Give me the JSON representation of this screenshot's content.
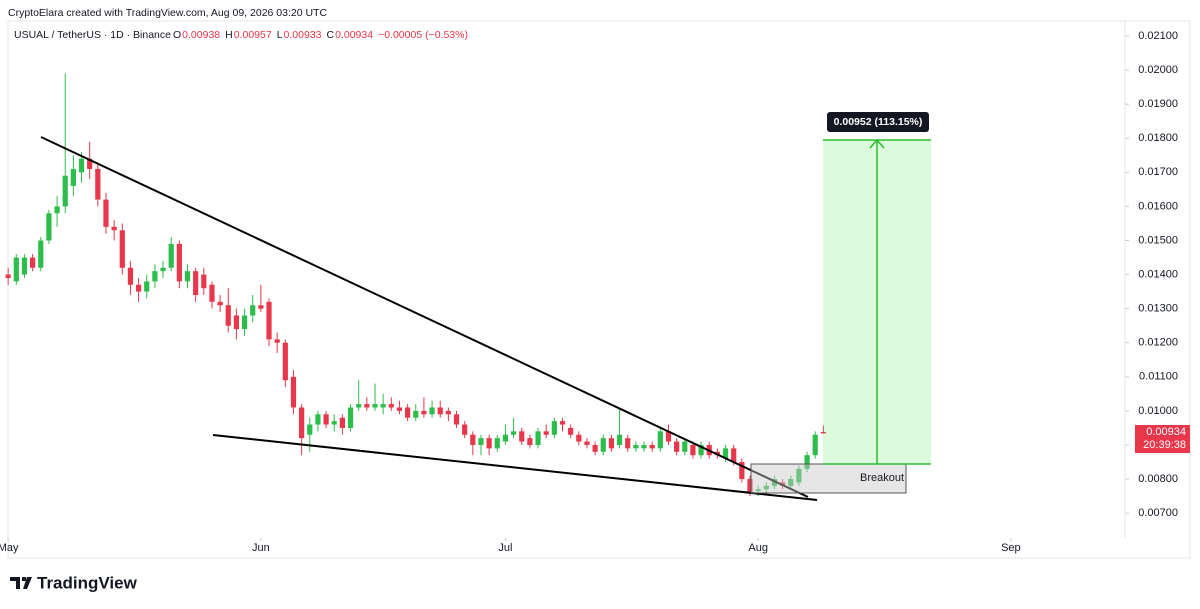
{
  "header": {
    "credit": "CryptoElara created with TradingView.com, Aug 09, 2026 03:20 UTC",
    "symbol": "USUAL / TetherUS · 1D · Binance",
    "ohlc": [
      {
        "key": "O",
        "value": "0.00938"
      },
      {
        "key": "H",
        "value": "0.00957"
      },
      {
        "key": "L",
        "value": "0.00933"
      },
      {
        "key": "C",
        "value": "0.00934"
      }
    ],
    "change": "−0.00005 (−0.53%)"
  },
  "chart_data": {
    "type": "candlestick",
    "x": [
      0,
      1,
      2,
      3,
      4,
      5,
      6,
      7,
      8,
      9,
      10,
      11,
      12,
      13,
      14,
      15,
      16,
      17,
      18,
      19,
      20,
      21,
      22,
      23,
      24,
      25,
      26,
      27,
      28,
      29,
      30,
      31,
      32,
      33,
      34,
      35,
      36,
      37,
      38,
      39,
      40,
      41,
      42,
      43,
      44,
      45,
      46,
      47,
      48,
      49,
      50,
      51,
      52,
      53,
      54,
      55,
      56,
      57,
      58,
      59,
      60,
      61,
      62,
      63,
      64,
      65,
      66,
      67,
      68,
      69,
      70,
      71,
      72,
      73,
      74,
      75,
      76,
      77,
      78,
      79,
      80,
      81,
      82,
      83,
      84,
      85,
      86,
      87,
      88,
      89,
      90,
      91,
      92,
      93,
      94,
      95,
      96,
      97,
      98,
      99,
      100
    ],
    "open": [
      0.014,
      0.0138,
      0.014,
      0.0145,
      0.0142,
      0.015,
      0.0158,
      0.016,
      0.0166,
      0.017,
      0.0174,
      0.0171,
      0.0162,
      0.0154,
      0.0153,
      0.0142,
      0.0137,
      0.0135,
      0.0138,
      0.0141,
      0.0142,
      0.0149,
      0.0138,
      0.0141,
      0.014,
      0.0137,
      0.0132,
      0.0131,
      0.0128,
      0.0124,
      0.0128,
      0.0131,
      0.0132,
      0.0121,
      0.012,
      0.011,
      0.0101,
      0.0093,
      0.0096,
      0.0099,
      0.0096,
      0.0098,
      0.0095,
      0.0101,
      0.0102,
      0.0101,
      0.0101,
      0.0102,
      0.0101,
      0.0101,
      0.0098,
      0.01,
      0.0099,
      0.0101,
      0.01,
      0.0099,
      0.0096,
      0.0093,
      0.009,
      0.0092,
      0.0089,
      0.0091,
      0.0093,
      0.0094,
      0.0092,
      0.009,
      0.0094,
      0.0093,
      0.0097,
      0.0095,
      0.0093,
      0.0091,
      0.009,
      0.0088,
      0.0092,
      0.009,
      0.0092,
      0.0089,
      0.0089,
      0.009,
      0.0089,
      0.0094,
      0.0091,
      0.0088,
      0.009,
      0.0087,
      0.009,
      0.0088,
      0.0086,
      0.0089,
      0.0085,
      0.008,
      0.00765,
      0.0077,
      0.0078,
      0.0079,
      0.0078,
      0.0079,
      0.0083,
      0.0087,
      0.00938
    ],
    "high": [
      0.0142,
      0.0146,
      0.0146,
      0.0146,
      0.0151,
      0.0159,
      0.0163,
      0.0199,
      0.0175,
      0.0176,
      0.0179,
      0.0173,
      0.0164,
      0.0156,
      0.0155,
      0.0144,
      0.0139,
      0.014,
      0.0143,
      0.0144,
      0.0151,
      0.015,
      0.0143,
      0.0142,
      0.0142,
      0.0138,
      0.0134,
      0.0136,
      0.013,
      0.013,
      0.0134,
      0.0137,
      0.0133,
      0.0123,
      0.0121,
      0.0112,
      0.0102,
      0.0098,
      0.01,
      0.01,
      0.0099,
      0.0099,
      0.0102,
      0.0109,
      0.0104,
      0.0108,
      0.0105,
      0.0104,
      0.0103,
      0.0102,
      0.0102,
      0.0104,
      0.0103,
      0.0103,
      0.0101,
      0.01,
      0.0097,
      0.0094,
      0.0093,
      0.0093,
      0.0093,
      0.0096,
      0.0098,
      0.0095,
      0.0093,
      0.0095,
      0.0096,
      0.0098,
      0.0098,
      0.0096,
      0.0094,
      0.0092,
      0.0091,
      0.0093,
      0.0093,
      0.0101,
      0.0093,
      0.0091,
      0.0091,
      0.0091,
      0.0095,
      0.0096,
      0.0092,
      0.0092,
      0.0091,
      0.0091,
      0.0091,
      0.0089,
      0.009,
      0.009,
      0.0086,
      0.0081,
      0.0078,
      0.0079,
      0.0081,
      0.008,
      0.0081,
      0.0084,
      0.0088,
      0.0094,
      0.00957
    ],
    "low": [
      0.0137,
      0.0137,
      0.0139,
      0.0141,
      0.0141,
      0.0149,
      0.0154,
      0.0158,
      0.0163,
      0.0167,
      0.0168,
      0.016,
      0.0152,
      0.015,
      0.014,
      0.0134,
      0.0132,
      0.0133,
      0.0136,
      0.0139,
      0.0141,
      0.0136,
      0.0136,
      0.0132,
      0.0134,
      0.013,
      0.0129,
      0.0123,
      0.0121,
      0.0122,
      0.0126,
      0.0129,
      0.0119,
      0.0117,
      0.0107,
      0.0099,
      0.0087,
      0.0088,
      0.0094,
      0.0095,
      0.0094,
      0.0093,
      0.0094,
      0.01,
      0.01,
      0.01,
      0.0099,
      0.01,
      0.0099,
      0.0097,
      0.0097,
      0.0098,
      0.0098,
      0.0098,
      0.0097,
      0.0095,
      0.0092,
      0.0087,
      0.0087,
      0.0087,
      0.0088,
      0.009,
      0.0092,
      0.009,
      0.0089,
      0.0089,
      0.0092,
      0.0092,
      0.0094,
      0.0092,
      0.009,
      0.0089,
      0.0087,
      0.0087,
      0.0088,
      0.0089,
      0.0088,
      0.0088,
      0.0088,
      0.0088,
      0.0088,
      0.009,
      0.0087,
      0.0087,
      0.0086,
      0.0086,
      0.0086,
      0.0086,
      0.0085,
      0.0084,
      0.0079,
      0.0075,
      0.0075,
      0.0076,
      0.0077,
      0.0077,
      0.0077,
      0.0078,
      0.0082,
      0.0086,
      0.00933
    ],
    "close": [
      0.0139,
      0.0145,
      0.0145,
      0.0142,
      0.015,
      0.0158,
      0.016,
      0.0169,
      0.0171,
      0.0174,
      0.0171,
      0.0162,
      0.0154,
      0.0153,
      0.0142,
      0.0137,
      0.0135,
      0.0138,
      0.0141,
      0.0142,
      0.0149,
      0.0138,
      0.0141,
      0.0134,
      0.0136,
      0.0132,
      0.0131,
      0.0125,
      0.0124,
      0.0128,
      0.0131,
      0.013,
      0.0121,
      0.012,
      0.0109,
      0.0101,
      0.0092,
      0.0096,
      0.0099,
      0.0096,
      0.0097,
      0.0095,
      0.0101,
      0.0102,
      0.0101,
      0.0102,
      0.0102,
      0.0101,
      0.01,
      0.0098,
      0.01,
      0.0099,
      0.0101,
      0.0099,
      0.0099,
      0.0096,
      0.0093,
      0.009,
      0.0092,
      0.0089,
      0.0092,
      0.0093,
      0.0094,
      0.0091,
      0.009,
      0.0094,
      0.0093,
      0.0097,
      0.0096,
      0.0093,
      0.0091,
      0.009,
      0.0088,
      0.0092,
      0.0089,
      0.0093,
      0.0089,
      0.009,
      0.009,
      0.0089,
      0.0094,
      0.0091,
      0.0088,
      0.0091,
      0.0087,
      0.009,
      0.0087,
      0.0087,
      0.0089,
      0.0085,
      0.008,
      0.0076,
      0.0077,
      0.0078,
      0.008,
      0.0078,
      0.008,
      0.0083,
      0.0087,
      0.0093,
      0.00934
    ],
    "up_color": "#2dbd4a",
    "down_color": "#e8364a",
    "xlim": [
      -1,
      137
    ],
    "xticks": [
      {
        "value": 0,
        "label": "May"
      },
      {
        "value": 31,
        "label": "Jun"
      },
      {
        "value": 61,
        "label": "Jul"
      },
      {
        "value": 92,
        "label": "Aug"
      },
      {
        "value": 123,
        "label": "Sep"
      }
    ],
    "ylim": [
      0.00627,
      0.02147
    ],
    "yticks": [
      {
        "value": 0.007,
        "label": "0.00700"
      },
      {
        "value": 0.008,
        "label": "0.00800"
      },
      {
        "value": 0.009,
        "label": "0.00900"
      },
      {
        "value": 0.01,
        "label": "0.01000"
      },
      {
        "value": 0.011,
        "label": "0.01100"
      },
      {
        "value": 0.012,
        "label": "0.01200"
      },
      {
        "value": 0.013,
        "label": "0.01300"
      },
      {
        "value": 0.014,
        "label": "0.01400"
      },
      {
        "value": 0.015,
        "label": "0.01500"
      },
      {
        "value": 0.016,
        "label": "0.01600"
      },
      {
        "value": 0.017,
        "label": "0.01700"
      },
      {
        "value": 0.018,
        "label": "0.01800"
      },
      {
        "value": 0.019,
        "label": "0.01900"
      },
      {
        "value": 0.02,
        "label": "0.02000"
      },
      {
        "value": 0.021,
        "label": "0.02100"
      }
    ],
    "grid": false
  },
  "annotations": {
    "target": "0.00952 (113.15%)",
    "breakout": "Breakout",
    "last_price": "0.00934",
    "countdown": "20:39:38"
  },
  "footer": {
    "logo": "TradingView"
  }
}
